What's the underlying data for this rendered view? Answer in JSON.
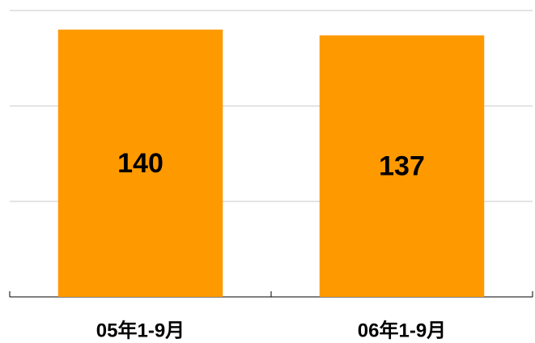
{
  "chart_data": {
    "type": "bar",
    "categories": [
      "05年1-9月",
      "06年1-9月"
    ],
    "values": [
      140,
      137
    ],
    "color": "#ff9900",
    "ylim": [
      0,
      150
    ],
    "yticks": [
      0,
      50,
      100,
      150
    ],
    "grid": true
  }
}
